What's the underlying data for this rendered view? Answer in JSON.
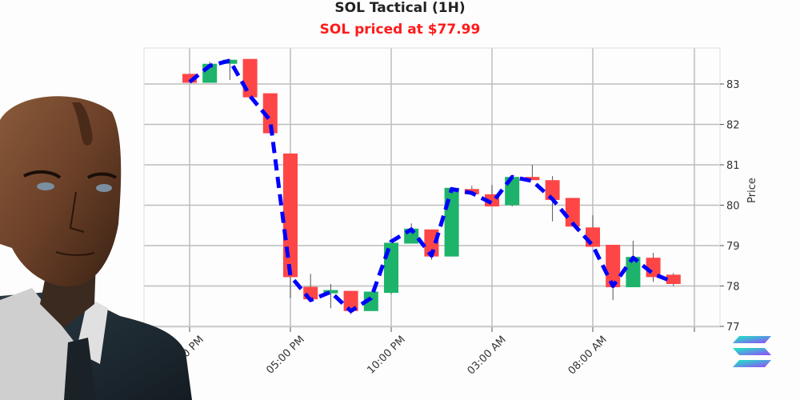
{
  "header": {
    "title": "SOL Tactical (1H)",
    "subtitle": "SOL priced at $77.99"
  },
  "colors": {
    "up": "#1db36b",
    "down": "#ff4646",
    "ma_line": "#0000ff",
    "subtitle": "#ff1a1a",
    "grid": "#bdbdbd"
  },
  "logo": {
    "name": "solana-logo"
  },
  "chart_data": {
    "type": "candlestick",
    "title": "SOL Tactical (1H)",
    "subtitle": "SOL priced at $77.99",
    "xlabel": "",
    "ylabel": "Price",
    "ylim": [
      77,
      83.9
    ],
    "yticks": [
      77,
      78,
      79,
      80,
      81,
      82,
      83
    ],
    "xtick_labels": [
      "03:00 PM",
      "05:00 PM",
      "10:00 PM",
      "03:00 AM",
      "08:00 AM"
    ],
    "grid": true,
    "y_axis_position": "right",
    "candles": [
      {
        "t": "03:00 PM",
        "o": 83.25,
        "h": 83.25,
        "c": 83.03,
        "l": 83.03
      },
      {
        "t": "04:00 PM",
        "o": 83.03,
        "h": 83.55,
        "c": 83.5,
        "l": 83.03
      },
      {
        "t": "05:00 PM",
        "o": 83.5,
        "h": 83.62,
        "c": 83.6,
        "l": 83.1
      },
      {
        "t": "06:00 PM",
        "o": 83.62,
        "h": 83.62,
        "c": 82.67,
        "l": 82.67
      },
      {
        "t": "07:00 PM",
        "o": 82.77,
        "h": 82.77,
        "c": 81.78,
        "l": 81.78
      },
      {
        "t": "08:00 PM",
        "o": 81.28,
        "h": 81.28,
        "c": 78.22,
        "l": 77.7
      },
      {
        "t": "09:00 PM",
        "o": 77.98,
        "h": 78.3,
        "c": 77.67,
        "l": 77.67
      },
      {
        "t": "10:00 PM",
        "o": 77.82,
        "h": 78.05,
        "c": 77.9,
        "l": 77.45
      },
      {
        "t": "11:00 PM",
        "o": 77.88,
        "h": 77.88,
        "c": 77.38,
        "l": 77.3
      },
      {
        "t": "12:00 AM",
        "o": 77.38,
        "h": 77.86,
        "c": 77.86,
        "l": 77.38
      },
      {
        "t": "01:00 AM",
        "o": 77.83,
        "h": 79.07,
        "c": 79.07,
        "l": 77.8
      },
      {
        "t": "02:00 AM",
        "o": 79.05,
        "h": 79.55,
        "c": 79.42,
        "l": 79.05
      },
      {
        "t": "03:00 AM",
        "o": 79.4,
        "h": 79.4,
        "c": 78.73,
        "l": 78.65
      },
      {
        "t": "04:00 AM",
        "o": 78.73,
        "h": 80.43,
        "c": 80.43,
        "l": 78.73
      },
      {
        "t": "05:00 AM",
        "o": 80.4,
        "h": 80.48,
        "c": 80.27,
        "l": 80.25
      },
      {
        "t": "06:00 AM",
        "o": 80.27,
        "h": 80.5,
        "c": 79.97,
        "l": 79.97
      },
      {
        "t": "07:00 AM",
        "o": 80.0,
        "h": 80.7,
        "c": 80.7,
        "l": 79.97
      },
      {
        "t": "08:00 AM",
        "o": 80.7,
        "h": 81.0,
        "c": 80.62,
        "l": 80.62
      },
      {
        "t": "09:00 AM",
        "o": 80.62,
        "h": 80.72,
        "c": 80.13,
        "l": 79.6
      },
      {
        "t": "10:00 AM",
        "o": 80.18,
        "h": 80.18,
        "c": 79.47,
        "l": 79.47
      },
      {
        "t": "11:00 AM",
        "o": 79.45,
        "h": 79.75,
        "c": 78.97,
        "l": 78.97
      },
      {
        "t": "12:00 PM",
        "o": 79.02,
        "h": 79.02,
        "c": 77.97,
        "l": 77.65
      },
      {
        "t": "01:00 PM",
        "o": 77.97,
        "h": 79.12,
        "c": 78.72,
        "l": 77.97
      },
      {
        "t": "02:00 PM",
        "o": 78.7,
        "h": 78.82,
        "c": 78.22,
        "l": 78.1
      },
      {
        "t": "03:00 PM",
        "o": 78.28,
        "h": 78.32,
        "c": 78.05,
        "l": 78.0
      }
    ],
    "ma_line": {
      "style": "dashed",
      "values": [
        83.05,
        83.45,
        83.58,
        82.7,
        82.1,
        78.25,
        77.65,
        77.85,
        77.38,
        77.7,
        79.1,
        79.4,
        78.75,
        80.4,
        80.3,
        80.05,
        80.7,
        80.6,
        80.15,
        79.55,
        79.0,
        78.0,
        78.7,
        78.3,
        78.1
      ]
    }
  }
}
